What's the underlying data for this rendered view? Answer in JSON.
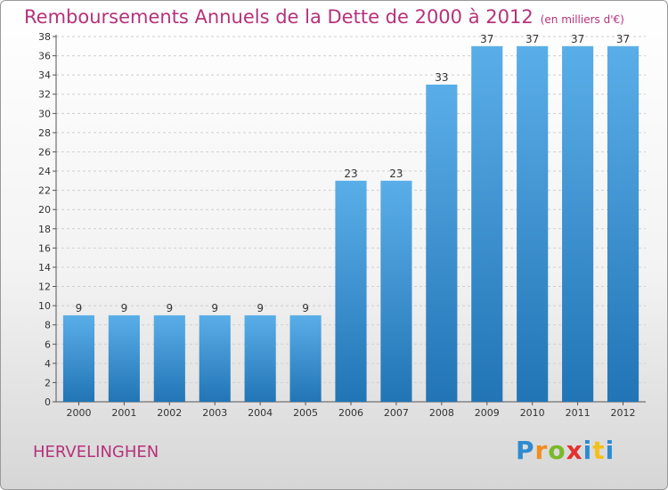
{
  "title": "Remboursements Annuels de la Dette de 2000 à 2012",
  "unit": "(en milliers d'€)",
  "commune": "HERVELINGHEN",
  "logo": {
    "letters": [
      "P",
      "r",
      "o",
      "x",
      "i",
      "t",
      "i"
    ]
  },
  "colors": {
    "title": "#b5327a",
    "bar_top": "#5aaee8",
    "bar_bottom": "#2275b5"
  },
  "chart_data": {
    "type": "bar",
    "categories": [
      "2000",
      "2001",
      "2002",
      "2003",
      "2004",
      "2005",
      "2006",
      "2007",
      "2008",
      "2009",
      "2010",
      "2011",
      "2012"
    ],
    "values": [
      9,
      9,
      9,
      9,
      9,
      9,
      23,
      23,
      33,
      37,
      37,
      37,
      37
    ],
    "ylim": [
      0,
      38
    ],
    "yticks": [
      0,
      2,
      4,
      6,
      8,
      10,
      12,
      14,
      16,
      18,
      20,
      22,
      24,
      26,
      28,
      30,
      32,
      34,
      36,
      38
    ],
    "grid": true,
    "data_labels": true
  }
}
